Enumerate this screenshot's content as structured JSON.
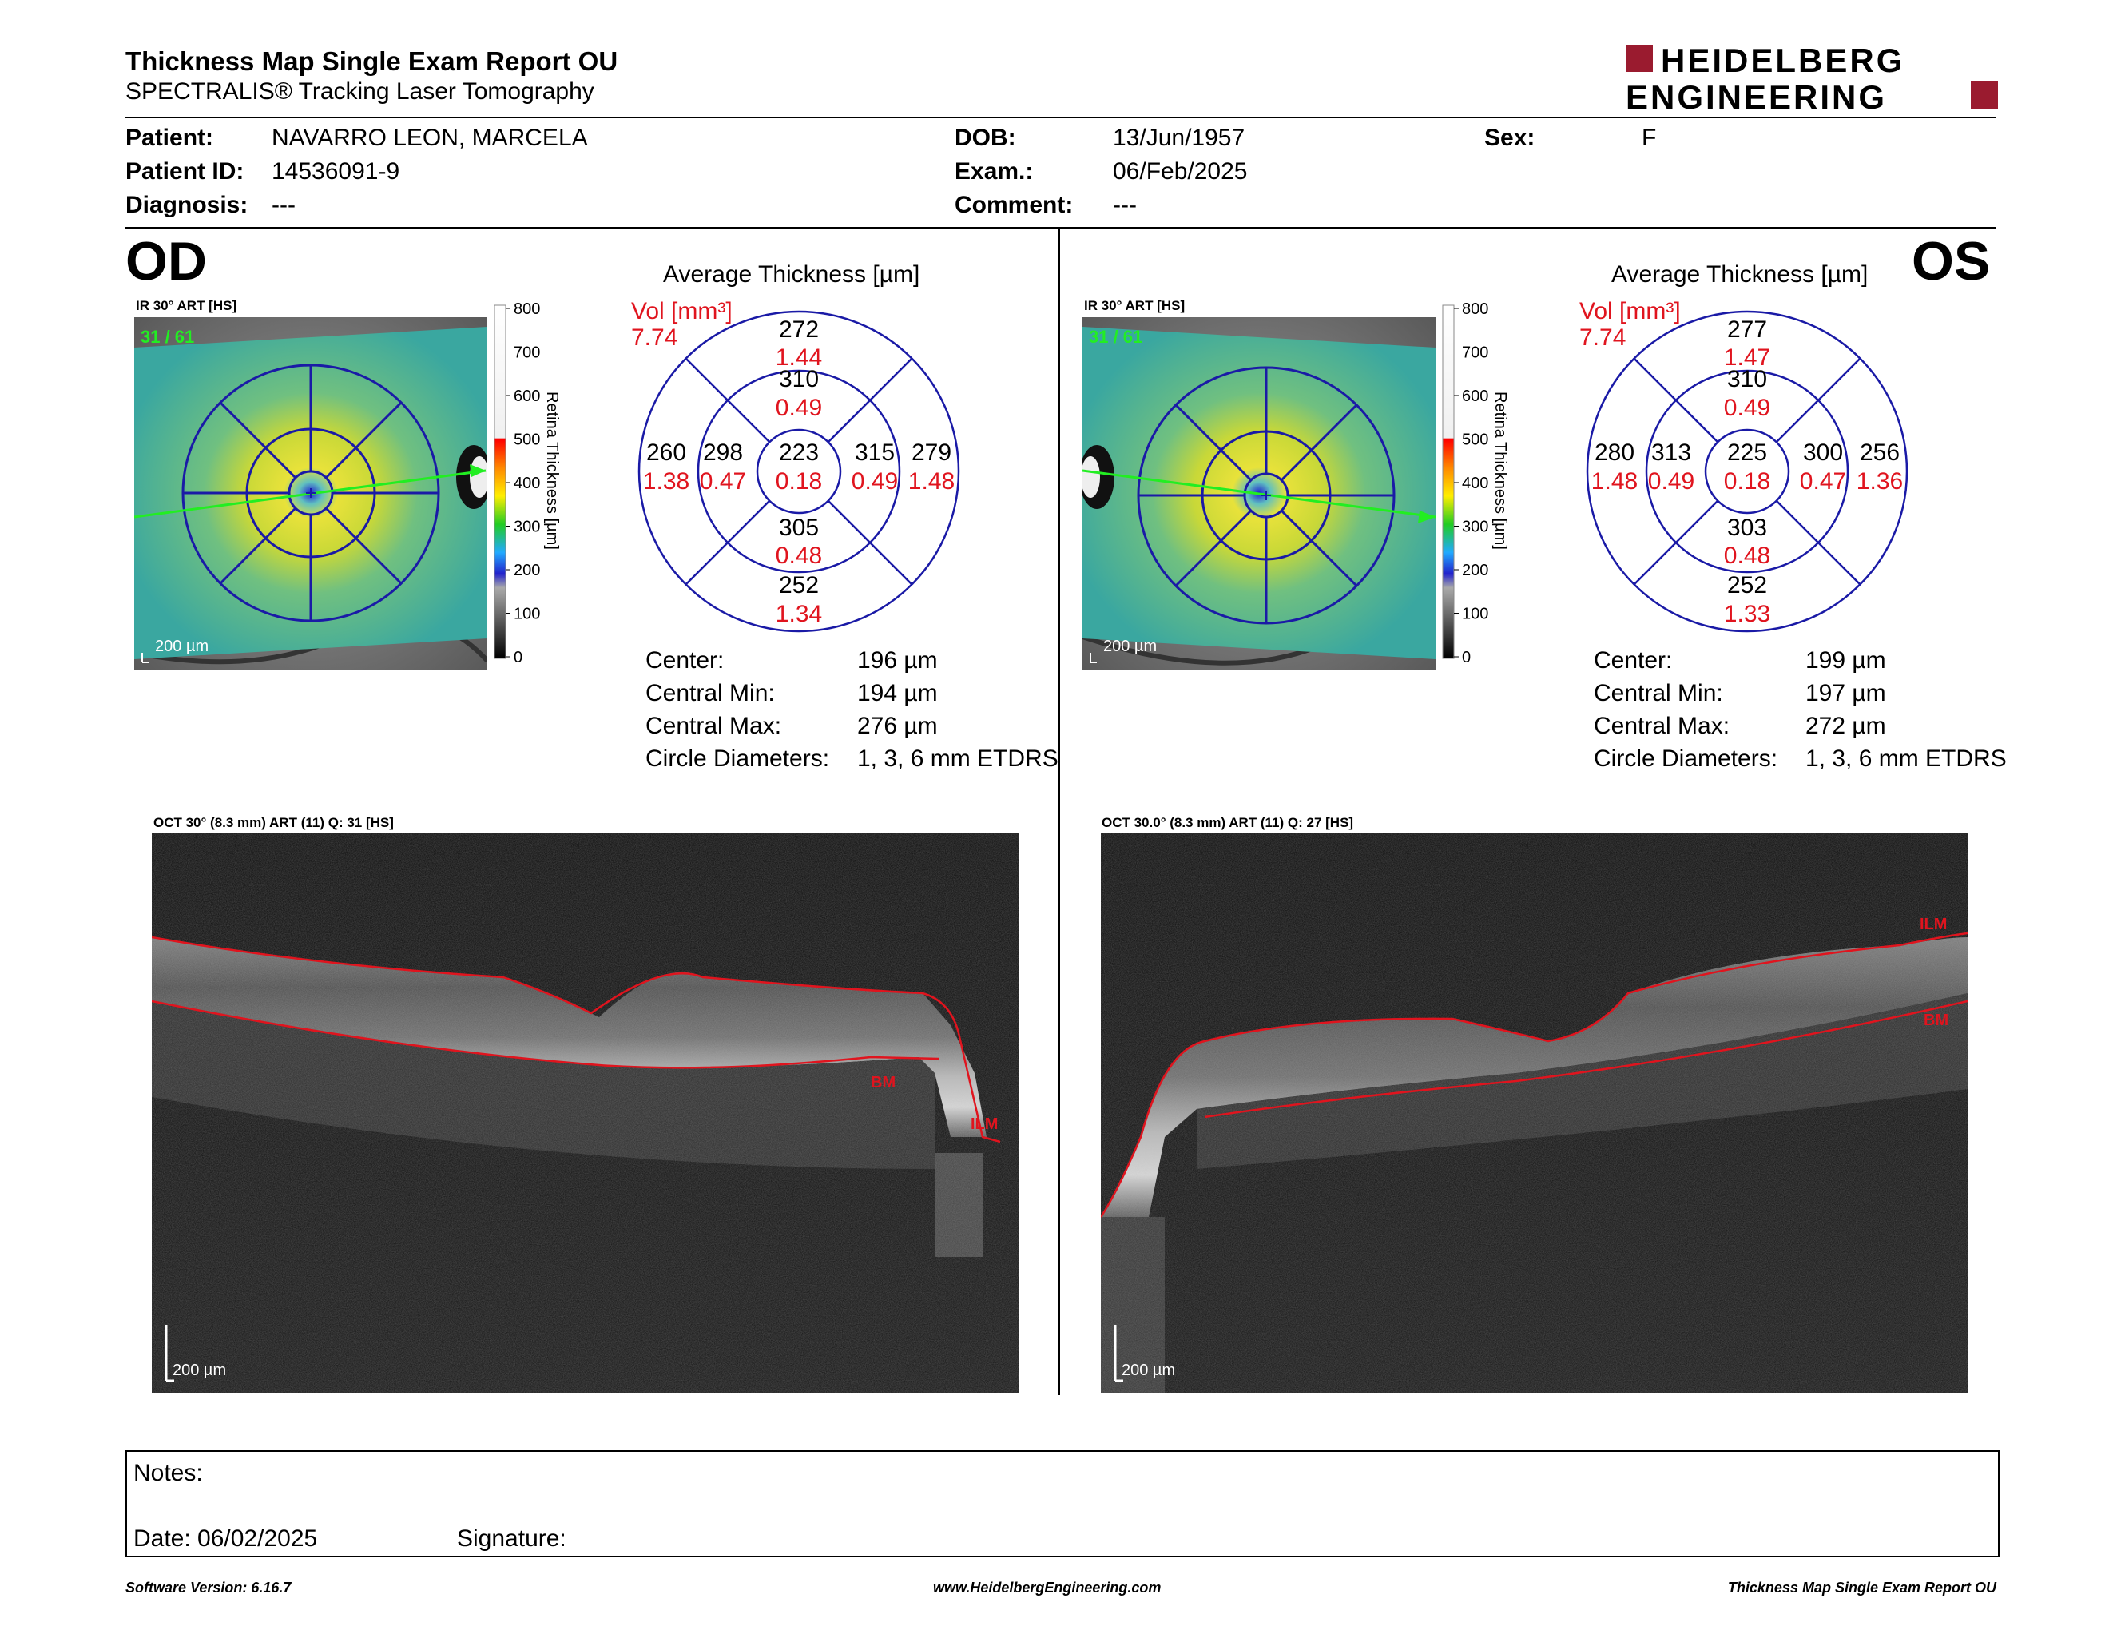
{
  "header": {
    "title": "Thickness Map Single Exam Report OU",
    "subtitle": "SPECTRALIS® Tracking Laser Tomography",
    "logo_line1": "HEIDELBERG",
    "logo_line2": "ENGINEERING"
  },
  "patient": {
    "patient_label": "Patient:",
    "patient_value": "NAVARRO LEON, MARCELA",
    "id_label": "Patient ID:",
    "id_value": "14536091-9",
    "diagnosis_label": "Diagnosis:",
    "diagnosis_value": "---",
    "dob_label": "DOB:",
    "dob_value": "13/Jun/1957",
    "exam_label": "Exam.:",
    "exam_value": "06/Feb/2025",
    "comment_label": "Comment:",
    "comment_value": "---",
    "sex_label": "Sex:",
    "sex_value": "F"
  },
  "colorbar": {
    "title": "Retina Thickness [µm]",
    "ticks": [
      "800",
      "700",
      "600",
      "500",
      "400",
      "300",
      "200",
      "100",
      "0"
    ]
  },
  "common": {
    "avg_title": "Average Thickness [µm]",
    "vol_label": "Vol [mm³]",
    "center_label": "Center:",
    "cmin_label": "Central Min:",
    "cmax_label": "Central Max:",
    "diam_label": "Circle Diameters:",
    "scale_label": "200 µm"
  },
  "od": {
    "eye": "OD",
    "ir_label": "IR 30° ART [HS]",
    "ir_counter": "31 / 61",
    "vol_total": "7.74",
    "center": "196 µm",
    "cmin": "194 µm",
    "cmax": "276 µm",
    "diam": "1, 3, 6 mm ETDRS",
    "oct_label": "OCT 30° (8.3 mm) ART (11) Q: 31 [HS]",
    "ilm_label": "ILM",
    "bm_label": "BM",
    "sectors": {
      "center": {
        "t": "223",
        "v": "0.18"
      },
      "inner_top": {
        "t": "310",
        "v": "0.49"
      },
      "inner_bottom": {
        "t": "305",
        "v": "0.48"
      },
      "inner_left": {
        "t": "298",
        "v": "0.47"
      },
      "inner_right": {
        "t": "315",
        "v": "0.49"
      },
      "outer_top": {
        "t": "272",
        "v": "1.44"
      },
      "outer_bottom": {
        "t": "252",
        "v": "1.34"
      },
      "outer_left": {
        "t": "260",
        "v": "1.38"
      },
      "outer_right": {
        "t": "279",
        "v": "1.48"
      }
    }
  },
  "os": {
    "eye": "OS",
    "ir_label": "IR 30° ART [HS]",
    "ir_counter": "31 / 61",
    "vol_total": "7.74",
    "center": "199 µm",
    "cmin": "197 µm",
    "cmax": "272 µm",
    "diam": "1, 3, 6 mm ETDRS",
    "oct_label": "OCT 30.0° (8.3 mm) ART (11) Q: 27 [HS]",
    "ilm_label": "ILM",
    "bm_label": "BM",
    "sectors": {
      "center": {
        "t": "225",
        "v": "0.18"
      },
      "inner_top": {
        "t": "310",
        "v": "0.49"
      },
      "inner_bottom": {
        "t": "303",
        "v": "0.48"
      },
      "inner_left": {
        "t": "313",
        "v": "0.49"
      },
      "inner_right": {
        "t": "300",
        "v": "0.47"
      },
      "outer_top": {
        "t": "277",
        "v": "1.47"
      },
      "outer_bottom": {
        "t": "252",
        "v": "1.33"
      },
      "outer_left": {
        "t": "280",
        "v": "1.48"
      },
      "outer_right": {
        "t": "256",
        "v": "1.36"
      }
    }
  },
  "notes": {
    "notes_label": "Notes:",
    "date_label": "Date: 06/02/2025",
    "signature_label": "Signature:"
  },
  "footer": {
    "software": "Software Version: 6.16.7",
    "website": "www.HeidelbergEngineering.com",
    "report": "Thickness Map Single Exam Report OU"
  },
  "colors": {
    "red": "#e0141e",
    "grid_blue": "#1a1aa6",
    "logo_red": "#9a1b2f",
    "scan_line": "#22ee22"
  }
}
